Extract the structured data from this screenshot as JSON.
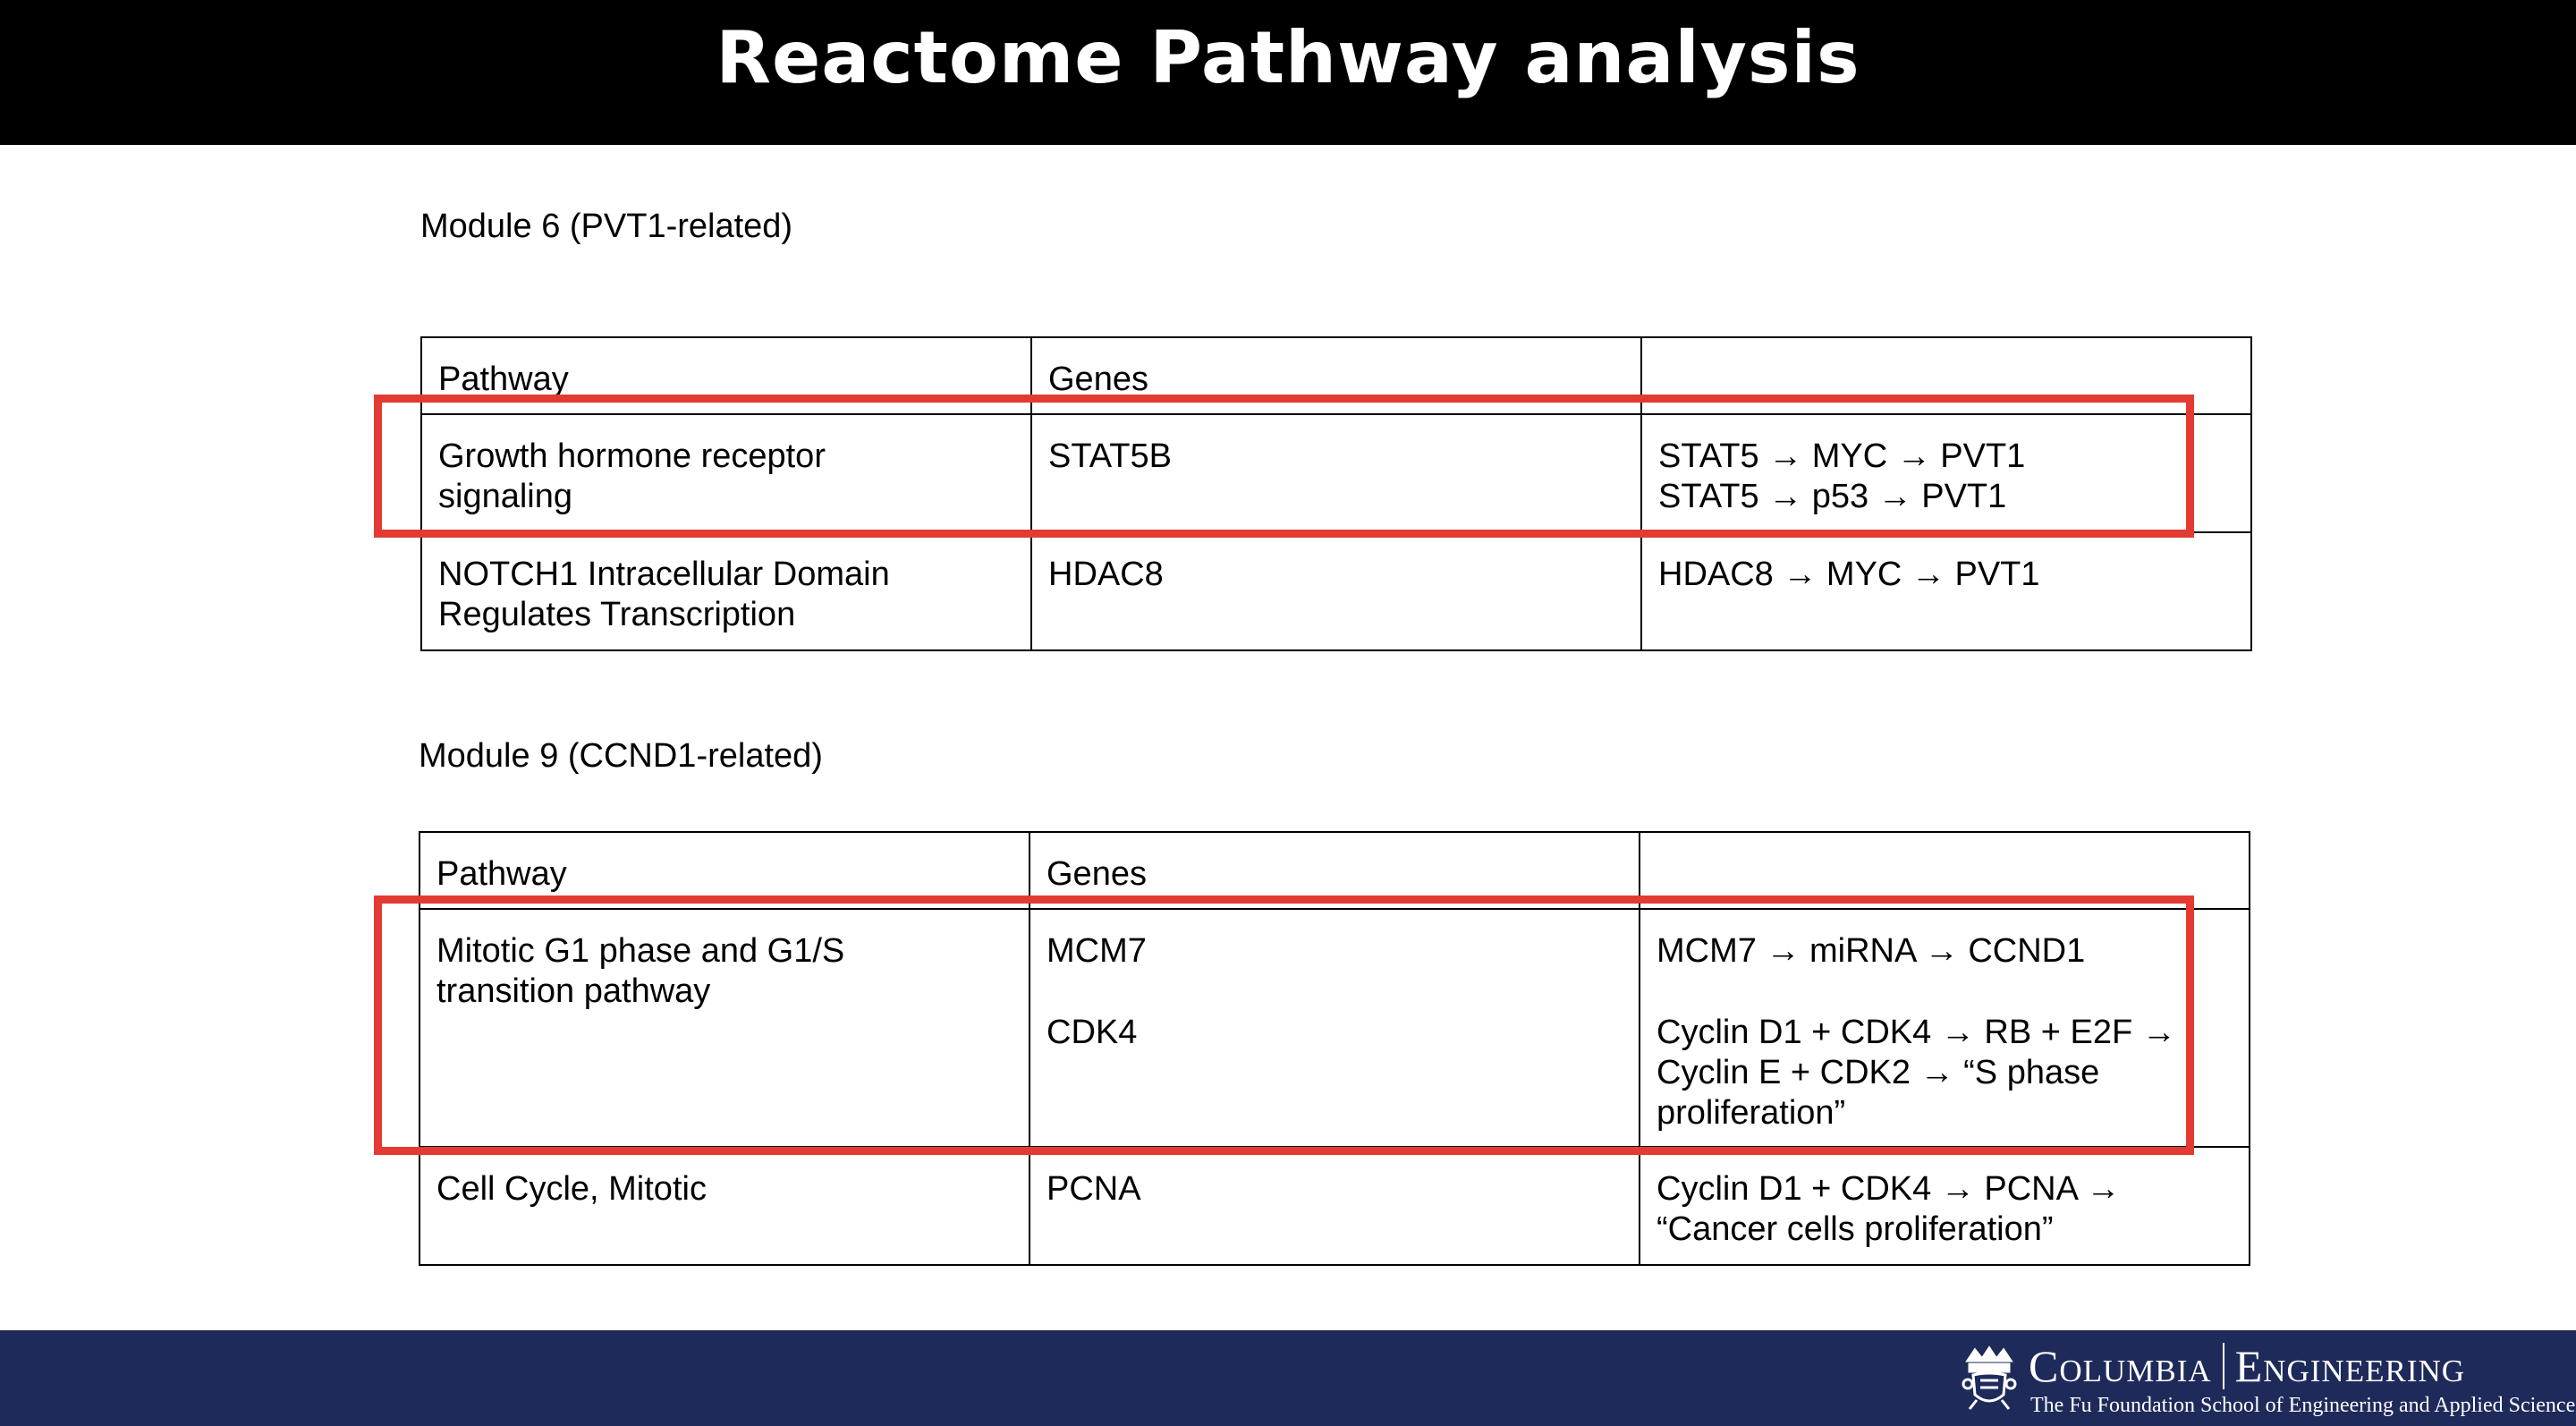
{
  "header": {
    "title": "Reactome Pathway analysis"
  },
  "module6": {
    "title": "Module 6 (PVT1-related)",
    "headers": [
      "Pathway",
      "Genes",
      ""
    ],
    "rows": [
      {
        "pathway": [
          "Growth hormone receptor",
          "signaling"
        ],
        "genes": [
          "STAT5B"
        ],
        "notes": [
          "STAT5 → MYC → PVT1",
          "STAT5 → p53 → PVT1"
        ]
      },
      {
        "pathway": [
          "NOTCH1 Intracellular Domain",
          "Regulates Transcription"
        ],
        "genes": [
          "HDAC8"
        ],
        "notes": [
          "HDAC8 → MYC → PVT1"
        ]
      }
    ]
  },
  "module9": {
    "title": "Module 9 (CCND1-related)",
    "headers": [
      "Pathway",
      "Genes",
      ""
    ],
    "rows": [
      {
        "pathway": [
          "Mitotic G1 phase and G1/S",
          "transition pathway"
        ],
        "genes": [
          "MCM7",
          "CDK4"
        ],
        "notes": [
          "MCM7 → miRNA → CCND1",
          "Cyclin D1 + CDK4 → RB + E2F →",
          "Cyclin E + CDK2 → “S phase",
          "proliferation”"
        ]
      },
      {
        "pathway": [
          "Cell Cycle, Mitotic"
        ],
        "genes": [
          "PCNA"
        ],
        "notes": [
          "Cyclin D1 + CDK4 → PCNA →",
          "“Cancer cells proliferation”"
        ]
      }
    ]
  },
  "footer": {
    "logo_left": "Columbia",
    "logo_right": "Engineering",
    "subtitle": "The Fu Foundation School of Engineering and Applied Science"
  },
  "colors": {
    "highlight": "#e33b34",
    "footer_bg": "#1e2a5a",
    "header_bg": "#000000"
  }
}
